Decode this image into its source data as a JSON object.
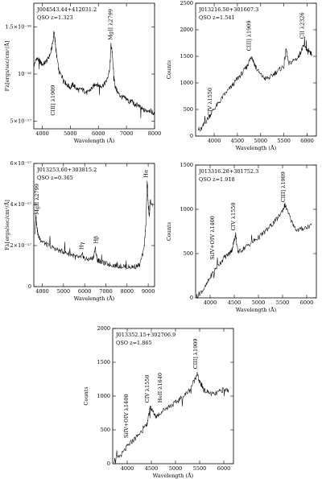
{
  "chart_data": [
    {
      "type": "line",
      "title": "J004543.44+412031.2",
      "subtitle": "QSO  z=1.323",
      "xlabel": "Wavelength  (Å)",
      "ylabel": "Fλ[ergs/sec/cm²/Å]",
      "xlim": [
        3700,
        8000
      ],
      "ylim": [
        4.2e-17,
        1.75e-16
      ],
      "xticks": [
        4000,
        5000,
        6000,
        7000,
        8000
      ],
      "xtick_labels": [
        "4000",
        "5000",
        "6000",
        "7000",
        "8000"
      ],
      "yticks": [
        5e-17,
        1e-16,
        1.5e-16
      ],
      "ytick_labels": [
        "5×10⁻¹⁷",
        "10⁻¹⁶",
        "1.5×10⁻¹⁶"
      ],
      "x": [
        3720,
        3800,
        3900,
        4000,
        4100,
        4200,
        4300,
        4380,
        4420,
        4450,
        4480,
        4520,
        4600,
        4700,
        4800,
        4900,
        5000,
        5100,
        5200,
        5300,
        5400,
        5500,
        5600,
        5700,
        5800,
        5900,
        6000,
        6100,
        6200,
        6300,
        6400,
        6450,
        6500,
        6550,
        6600,
        6700,
        6800,
        6900,
        7000,
        7100,
        7200,
        7300,
        7400,
        7500,
        7600,
        7700,
        7800,
        7900,
        7990
      ],
      "y": [
        1.1e-16,
        1.17e-16,
        1.14e-16,
        1.1e-16,
        1.12e-16,
        1.16e-16,
        1.22e-16,
        1.34e-16,
        1.45e-16,
        1.38e-16,
        1.28e-16,
        1.18e-16,
        1.02e-16,
        9.8e-17,
        9.2e-17,
        8.8e-17,
        8.6e-17,
        8.9e-17,
        8.5e-17,
        8.3e-17,
        8.4e-17,
        8.2e-17,
        8e-17,
        8.3e-17,
        8.6e-17,
        9e-17,
        8.8e-17,
        8.7e-17,
        8.9e-17,
        9.3e-17,
        1.05e-16,
        1.32e-16,
        1.2e-16,
        9.8e-17,
        8.6e-17,
        8e-17,
        7.6e-17,
        7.5e-17,
        7.4e-17,
        7e-17,
        7.2e-17,
        6.6e-17,
        6.8e-17,
        6.4e-17,
        6.2e-17,
        6.1e-17,
        6.2e-17,
        6e-17,
        5.7e-17
      ],
      "annotations": [
        {
          "text": "CIII] λ1909",
          "x": 4440,
          "y": 5.6e-17,
          "rotate": true
        },
        {
          "text": "MgII λ2799",
          "x": 6500,
          "y": 1.36e-16,
          "rotate": true
        }
      ]
    },
    {
      "type": "line",
      "title": "J013216.50+301607.3",
      "subtitle": "QSO  z=1.541",
      "xlabel": "Wavelength  (Å)",
      "ylabel": "Counts",
      "xlim": [
        3600,
        6200
      ],
      "ylim": [
        0,
        2500
      ],
      "xticks": [
        4000,
        4500,
        5000,
        5500,
        6000
      ],
      "xtick_labels": [
        "4000",
        "4500",
        "5000",
        "5500",
        "6000"
      ],
      "yticks": [
        0,
        500,
        1000,
        1500,
        2000,
        2500
      ],
      "ytick_labels": [
        "0",
        "500",
        "1000",
        "1500",
        "2000",
        "2500"
      ],
      "x": [
        3650,
        3700,
        3800,
        3900,
        4000,
        4100,
        4200,
        4300,
        4400,
        4500,
        4600,
        4700,
        4750,
        4800,
        4850,
        4900,
        5000,
        5100,
        5200,
        5300,
        5400,
        5500,
        5550,
        5600,
        5700,
        5800,
        5850,
        5900,
        5950,
        6000,
        6050,
        6100
      ],
      "y": [
        150,
        100,
        250,
        380,
        520,
        620,
        760,
        860,
        960,
        1080,
        1180,
        1300,
        1400,
        1510,
        1400,
        1280,
        1150,
        1080,
        1100,
        1180,
        1250,
        1310,
        1650,
        1350,
        1420,
        1470,
        1560,
        1650,
        1720,
        1600,
        1560,
        1540
      ],
      "annotations": [
        {
          "text": "CIV λ1550",
          "x": 3950,
          "y": 380,
          "rotate": true
        },
        {
          "text": "CIII] λ1909",
          "x": 4790,
          "y": 1600,
          "rotate": true
        },
        {
          "text": "CII λ2326",
          "x": 5930,
          "y": 1830,
          "rotate": true
        }
      ]
    },
    {
      "type": "line",
      "title": "J013253.60+303815.2",
      "subtitle": "QSO  z=0.365",
      "xlabel": "Wavelength  (Å)",
      "ylabel": "Fλ[ergs/sec/cm²/Å]",
      "xlim": [
        3600,
        9300
      ],
      "ylim": [
        0,
        6e-17
      ],
      "xticks": [
        4000,
        5000,
        6000,
        7000,
        8000,
        9000
      ],
      "xtick_labels": [
        "4000",
        "5000",
        "6000",
        "7000",
        "8000",
        "9000"
      ],
      "yticks": [
        0,
        2e-17,
        4e-17,
        6e-17
      ],
      "ytick_labels": [
        "0",
        "2×10⁻¹⁷",
        "4×10⁻¹⁷",
        "6×10⁻¹⁷"
      ],
      "x": [
        3650,
        3700,
        3750,
        3800,
        3900,
        4000,
        4200,
        4400,
        4600,
        4800,
        5000,
        5200,
        5400,
        5600,
        5800,
        5900,
        6000,
        6200,
        6400,
        6500,
        6600,
        6700,
        6800,
        7000,
        7200,
        7400,
        7600,
        7800,
        8000,
        8200,
        8400,
        8600,
        8800,
        8900,
        8950,
        9000,
        9050,
        9100,
        9200
      ],
      "y": [
        2.6e-17,
        3.5e-17,
        2.9e-17,
        2.5e-17,
        2.3e-17,
        2.2e-17,
        2.05e-17,
        1.95e-17,
        1.85e-17,
        1.75e-17,
        1.7e-17,
        1.62e-17,
        1.55e-17,
        1.45e-17,
        1.4e-17,
        1.55e-17,
        1.35e-17,
        1.32e-17,
        1.4e-17,
        1.85e-17,
        1.3e-17,
        1.25e-17,
        1.18e-17,
        1.12e-17,
        1.07e-17,
        1.03e-17,
        1e-17,
        9.8e-18,
        9.5e-18,
        9.6e-18,
        9.8e-18,
        1.05e-17,
        1.8e-17,
        3.2e-17,
        5.2e-17,
        4e-17,
        3.4e-17,
        4.2e-17,
        3.9e-17
      ],
      "annotations": [
        {
          "text": "MgII λ2799",
          "x": 3820,
          "y": 3.5e-17,
          "rotate": true
        },
        {
          "text": "Hγ",
          "x": 5930,
          "y": 1.8e-17,
          "rotate": true
        },
        {
          "text": "Hβ",
          "x": 6620,
          "y": 2.1e-17,
          "rotate": true
        },
        {
          "text": "Hα",
          "x": 8980,
          "y": 5.3e-17,
          "rotate": true
        }
      ]
    },
    {
      "type": "line",
      "title": "J013316.28+301752.3",
      "subtitle": "QSO  z=1.918",
      "xlabel": "Wavelength  (Å)",
      "ylabel": "Counts",
      "xlim": [
        3700,
        6200
      ],
      "ylim": [
        0,
        1500
      ],
      "xticks": [
        4000,
        4500,
        5000,
        5500,
        6000
      ],
      "xtick_labels": [
        "4000",
        "4500",
        "5000",
        "5500",
        "6000"
      ],
      "yticks": [
        0,
        500,
        1000,
        1500
      ],
      "ytick_labels": [
        "0",
        "500",
        "1000",
        "1500"
      ],
      "x": [
        3720,
        3800,
        3900,
        4000,
        4100,
        4200,
        4300,
        4400,
        4450,
        4500,
        4530,
        4560,
        4600,
        4700,
        4800,
        4900,
        5000,
        5100,
        5200,
        5300,
        5400,
        5500,
        5550,
        5600,
        5700,
        5800,
        5900,
        6000,
        6100
      ],
      "y": [
        20,
        60,
        120,
        230,
        320,
        390,
        460,
        500,
        540,
        650,
        720,
        560,
        520,
        560,
        600,
        640,
        680,
        730,
        780,
        840,
        900,
        990,
        1050,
        980,
        850,
        760,
        780,
        800,
        820
      ],
      "annotations": [
        {
          "text": "SiIV+OIV λ1400",
          "x": 4080,
          "y": 430,
          "rotate": true
        },
        {
          "text": "CIV λ1550",
          "x": 4520,
          "y": 760,
          "rotate": true
        },
        {
          "text": "CIII] λ1909",
          "x": 5550,
          "y": 1080,
          "rotate": true
        }
      ]
    },
    {
      "type": "line",
      "title": "J013352.15+302706.9",
      "subtitle": "QSO  z=1.865",
      "xlabel": "Wavelength  (Å)",
      "ylabel": "Counts",
      "xlim": [
        3700,
        6200
      ],
      "ylim": [
        0,
        2000
      ],
      "xticks": [
        4000,
        4500,
        5000,
        5500,
        6000
      ],
      "xtick_labels": [
        "4000",
        "4500",
        "5000",
        "5500",
        "6000"
      ],
      "yticks": [
        0,
        500,
        1000,
        1500,
        2000
      ],
      "ytick_labels": [
        "0",
        "500",
        "1000",
        "1500",
        "2000"
      ],
      "x": [
        3720,
        3800,
        3900,
        4000,
        4100,
        4200,
        4300,
        4400,
        4450,
        4480,
        4520,
        4600,
        4700,
        4800,
        4900,
        5000,
        5100,
        5200,
        5300,
        5400,
        5450,
        5500,
        5550,
        5600,
        5700,
        5800,
        5900,
        6000,
        6100
      ],
      "y": [
        50,
        80,
        150,
        250,
        330,
        400,
        480,
        560,
        720,
        850,
        780,
        700,
        760,
        820,
        860,
        900,
        960,
        1020,
        1100,
        1250,
        1330,
        1200,
        1150,
        1080,
        1050,
        1020,
        1060,
        1100,
        1090
      ],
      "annotations": [
        {
          "text": "SiIV+OIV λ1400",
          "x": 4020,
          "y": 380,
          "rotate": true
        },
        {
          "text": "CIV λ1550",
          "x": 4450,
          "y": 900,
          "rotate": true
        },
        {
          "text": "HeII λ1640",
          "x": 4720,
          "y": 900,
          "rotate": true
        },
        {
          "text": "CIII] λ1909",
          "x": 5450,
          "y": 1400,
          "rotate": true
        }
      ]
    }
  ]
}
